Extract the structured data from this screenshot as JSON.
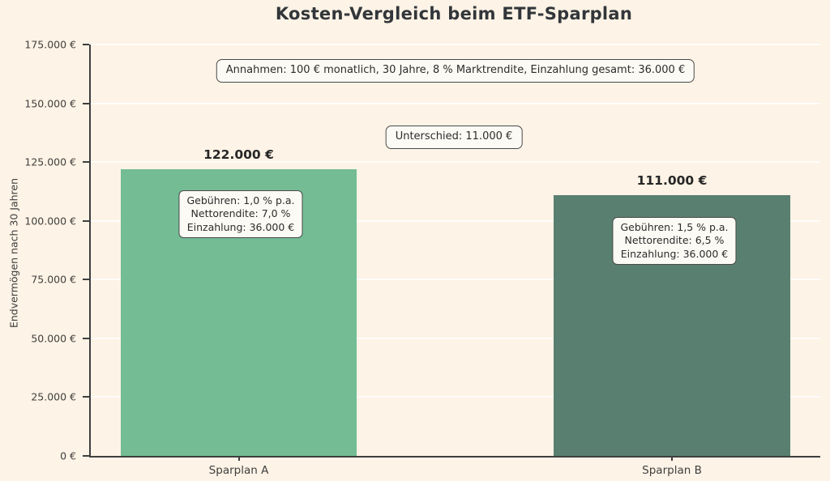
{
  "title": "Kosten-Vergleich beim ETF-Sparplan",
  "colors": {
    "background": "#fdf3e6",
    "bar_a": "#73bc94",
    "bar_b": "#597f70",
    "axis": "#3f3f3f",
    "gridline": "rgba(255,255,255,0.78)",
    "annotation_box_bg": "#fcfaf4",
    "annotation_box_border": "#4a4a4a"
  },
  "chart_data": {
    "type": "bar",
    "title": "Kosten-Vergleich beim ETF-Sparplan",
    "categories": [
      "Sparplan A",
      "Sparplan B"
    ],
    "values": [
      122000,
      111000
    ],
    "value_labels": [
      "122.000 €",
      "111.000 €"
    ],
    "bar_colors": [
      "#73bc94",
      "#597f70"
    ],
    "xlabel": "",
    "ylabel": "Endvermögen nach 30 Jahren",
    "ylim": [
      0,
      175000
    ],
    "ytick_step": 25000,
    "ytick_labels": [
      "0 €",
      "25.000 €",
      "50.000 €",
      "75.000 €",
      "100.000 €",
      "125.000 €",
      "150.000 €",
      "175.000 €"
    ],
    "grid": true,
    "legend": "none",
    "annotations": [
      {
        "id": "assumptions",
        "text": "Annahmen: 100 € monatlich, 30 Jahre, 8 % Marktrendite, Einzahlung gesamt: 36.000 €"
      },
      {
        "id": "difference",
        "text": "Unterschied: 11.000 €"
      },
      {
        "id": "bar_a_details",
        "lines": [
          "Gebühren: 1,0 % p.a.",
          "Nettorendite: 7,0 %",
          "Einzahlung: 36.000 €"
        ]
      },
      {
        "id": "bar_b_details",
        "lines": [
          "Gebühren: 1,5 % p.a.",
          "Nettorendite: 6,5 %",
          "Einzahlung: 36.000 €"
        ]
      }
    ]
  },
  "annotations": {
    "assumptions": "Annahmen: 100 € monatlich, 30 Jahre, 8 % Marktrendite, Einzahlung gesamt: 36.000 €",
    "difference": "Unterschied: 11.000 €",
    "bar_a_line1": "Gebühren: 1,0 % p.a.",
    "bar_a_line2": "Nettorendite: 7,0 %",
    "bar_a_line3": "Einzahlung: 36.000 €",
    "bar_b_line1": "Gebühren: 1,5 % p.a.",
    "bar_b_line2": "Nettorendite: 6,5 %",
    "bar_b_line3": "Einzahlung: 36.000 €"
  },
  "bars": {
    "a": {
      "label": "Sparplan A",
      "value_label": "122.000 €"
    },
    "b": {
      "label": "Sparplan B",
      "value_label": "111.000 €"
    }
  }
}
